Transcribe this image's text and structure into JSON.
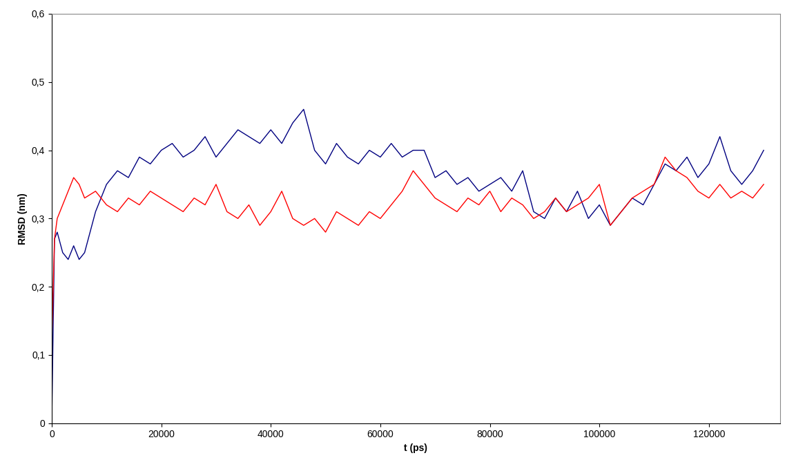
{
  "chart_data": {
    "type": "line",
    "x_label": "t (ps)",
    "y_label": "RMSD (nm)",
    "x": [
      0,
      500,
      1000,
      2000,
      3000,
      4000,
      5000,
      6000,
      8000,
      10000,
      12000,
      14000,
      16000,
      18000,
      20000,
      22000,
      24000,
      26000,
      28000,
      30000,
      32000,
      34000,
      36000,
      38000,
      40000,
      42000,
      44000,
      46000,
      48000,
      50000,
      52000,
      54000,
      56000,
      58000,
      60000,
      62000,
      64000,
      66000,
      68000,
      70000,
      72000,
      74000,
      76000,
      78000,
      80000,
      82000,
      84000,
      86000,
      88000,
      90000,
      92000,
      94000,
      96000,
      98000,
      100000,
      102000,
      104000,
      106000,
      108000,
      110000,
      112000,
      114000,
      116000,
      118000,
      120000,
      122000,
      124000,
      126000,
      128000,
      130000
    ],
    "series": [
      {
        "color": "#000080",
        "values": [
          0,
          0.27,
          0.28,
          0.25,
          0.24,
          0.26,
          0.24,
          0.25,
          0.31,
          0.35,
          0.37,
          0.36,
          0.39,
          0.38,
          0.4,
          0.41,
          0.39,
          0.4,
          0.42,
          0.39,
          0.41,
          0.43,
          0.42,
          0.41,
          0.43,
          0.41,
          0.44,
          0.46,
          0.4,
          0.38,
          0.41,
          0.39,
          0.38,
          0.4,
          0.39,
          0.41,
          0.39,
          0.4,
          0.4,
          0.36,
          0.37,
          0.35,
          0.36,
          0.34,
          0.35,
          0.36,
          0.34,
          0.37,
          0.31,
          0.3,
          0.33,
          0.31,
          0.34,
          0.3,
          0.32,
          0.29,
          0.31,
          0.33,
          0.32,
          0.35,
          0.38,
          0.37,
          0.39,
          0.36,
          0.38,
          0.42,
          0.37,
          0.35,
          0.37,
          0.4
        ]
      },
      {
        "color": "#ff0000",
        "values": [
          0.12,
          0.27,
          0.3,
          0.32,
          0.34,
          0.36,
          0.35,
          0.33,
          0.34,
          0.32,
          0.31,
          0.33,
          0.32,
          0.34,
          0.33,
          0.32,
          0.31,
          0.33,
          0.32,
          0.35,
          0.31,
          0.3,
          0.32,
          0.29,
          0.31,
          0.34,
          0.3,
          0.29,
          0.3,
          0.28,
          0.31,
          0.3,
          0.29,
          0.31,
          0.3,
          0.32,
          0.34,
          0.37,
          0.35,
          0.33,
          0.32,
          0.31,
          0.33,
          0.32,
          0.34,
          0.31,
          0.33,
          0.32,
          0.3,
          0.31,
          0.33,
          0.31,
          0.32,
          0.33,
          0.35,
          0.29,
          0.31,
          0.33,
          0.34,
          0.35,
          0.39,
          0.37,
          0.36,
          0.34,
          0.33,
          0.35,
          0.33,
          0.34,
          0.33,
          0.35
        ]
      }
    ],
    "xlim": [
      0,
      133000
    ],
    "xticks": [
      0,
      20000,
      40000,
      60000,
      80000,
      100000,
      120000
    ],
    "ylim": [
      0,
      0.6
    ],
    "yticks": [
      0,
      {
        "value": 0.1,
        "label": "0,1"
      },
      {
        "value": 0.2,
        "label": "0,2"
      },
      {
        "value": 0.3,
        "label": "0,3"
      },
      {
        "value": 0.4,
        "label": "0,4"
      },
      {
        "value": 0.5,
        "label": "0,5"
      },
      {
        "value": 0.6,
        "label": "0,6"
      }
    ],
    "grid": false
  }
}
